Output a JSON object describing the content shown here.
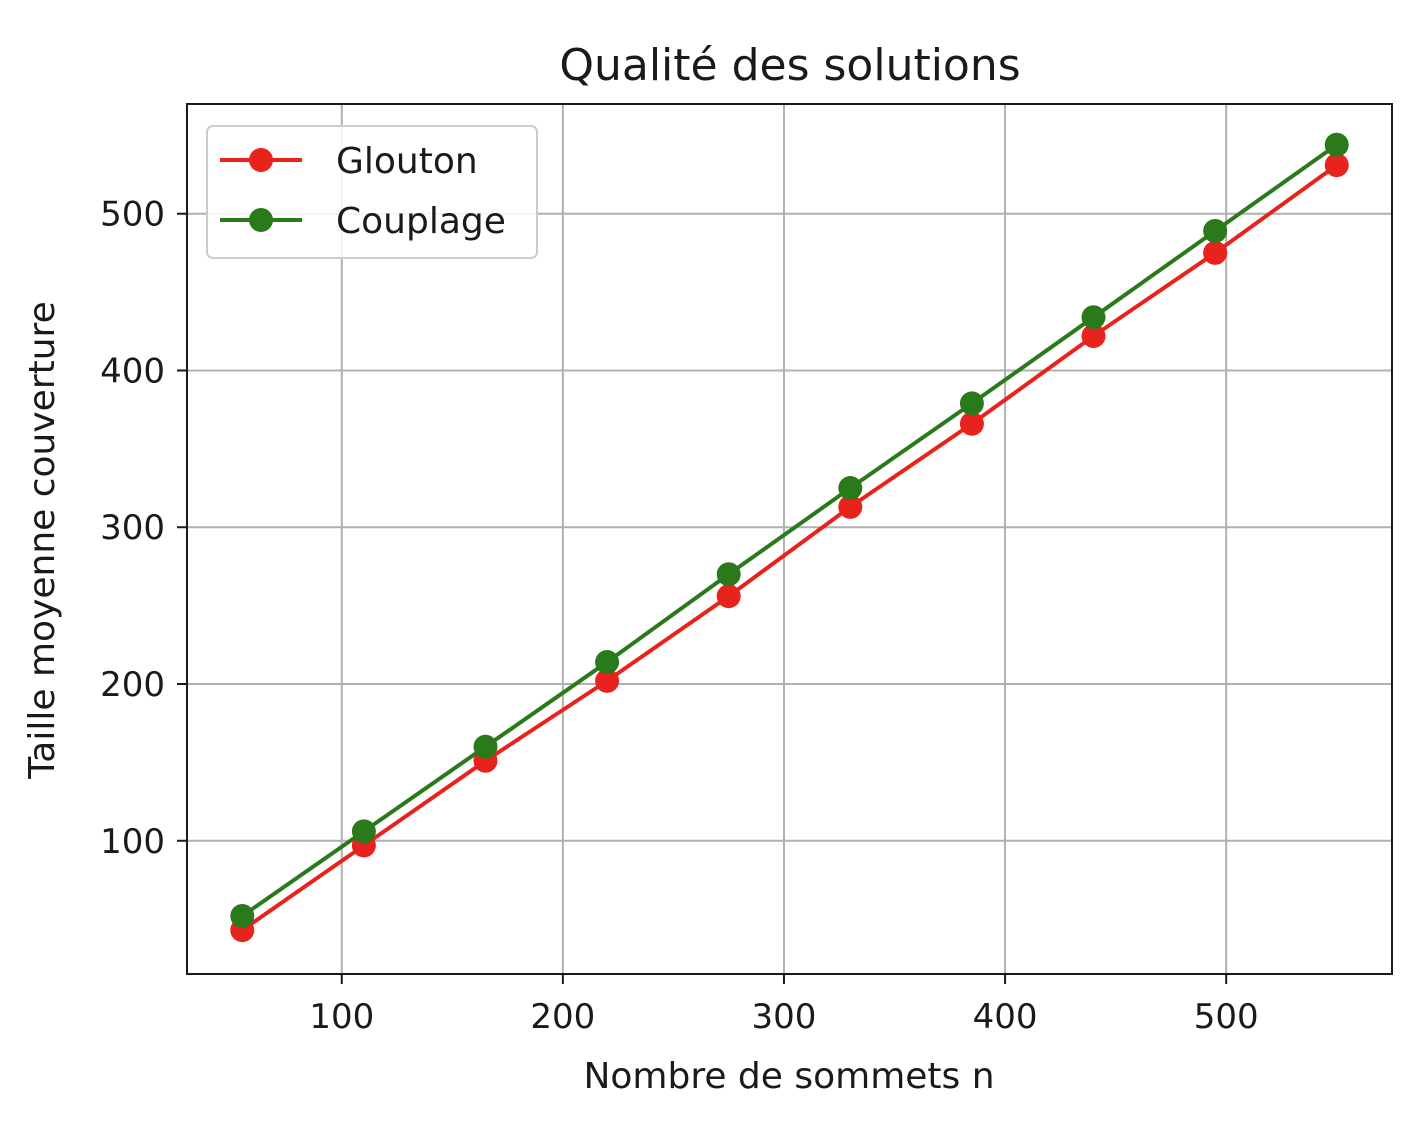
{
  "chart_data": {
    "type": "line",
    "title": "Qualité des solutions",
    "xlabel": "Nombre de sommets n",
    "ylabel": "Taille moyenne couverture",
    "xlim": [
      30,
      575
    ],
    "ylim": [
      15,
      570
    ],
    "xticks": [
      100,
      200,
      300,
      400,
      500
    ],
    "yticks": [
      100,
      200,
      300,
      400,
      500
    ],
    "grid": true,
    "legend_position": "top-left",
    "x": [
      55,
      110,
      165,
      220,
      275,
      330,
      385,
      440,
      495,
      550
    ],
    "series": [
      {
        "name": "Glouton",
        "color": "#e8231e",
        "values": [
          43,
          97,
          151,
          202,
          256,
          313,
          366,
          422,
          475,
          531
        ]
      },
      {
        "name": "Couplage",
        "color": "#2a7a1c",
        "values": [
          52,
          106,
          160,
          214,
          270,
          325,
          379,
          434,
          489,
          544
        ]
      }
    ]
  }
}
